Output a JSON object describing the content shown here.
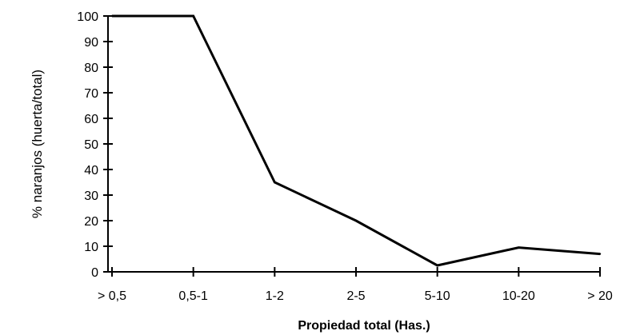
{
  "chart_data": {
    "type": "line",
    "title": "",
    "xlabel": "Propiedad total (Has.)",
    "ylabel": "% naranjos (huerta/total)",
    "categories": [
      "> 0,5",
      "0,5-1",
      "1-2",
      "2-5",
      "5-10",
      "10-20",
      "> 20"
    ],
    "series": [
      {
        "values": [
          100,
          100,
          35,
          20,
          2.5,
          9.5,
          7
        ]
      }
    ],
    "ylim": [
      0,
      100
    ],
    "yticks": [
      0,
      10,
      20,
      30,
      40,
      50,
      60,
      70,
      80,
      90,
      100
    ],
    "grid": false,
    "legend": "none",
    "line_color": "#000000"
  }
}
